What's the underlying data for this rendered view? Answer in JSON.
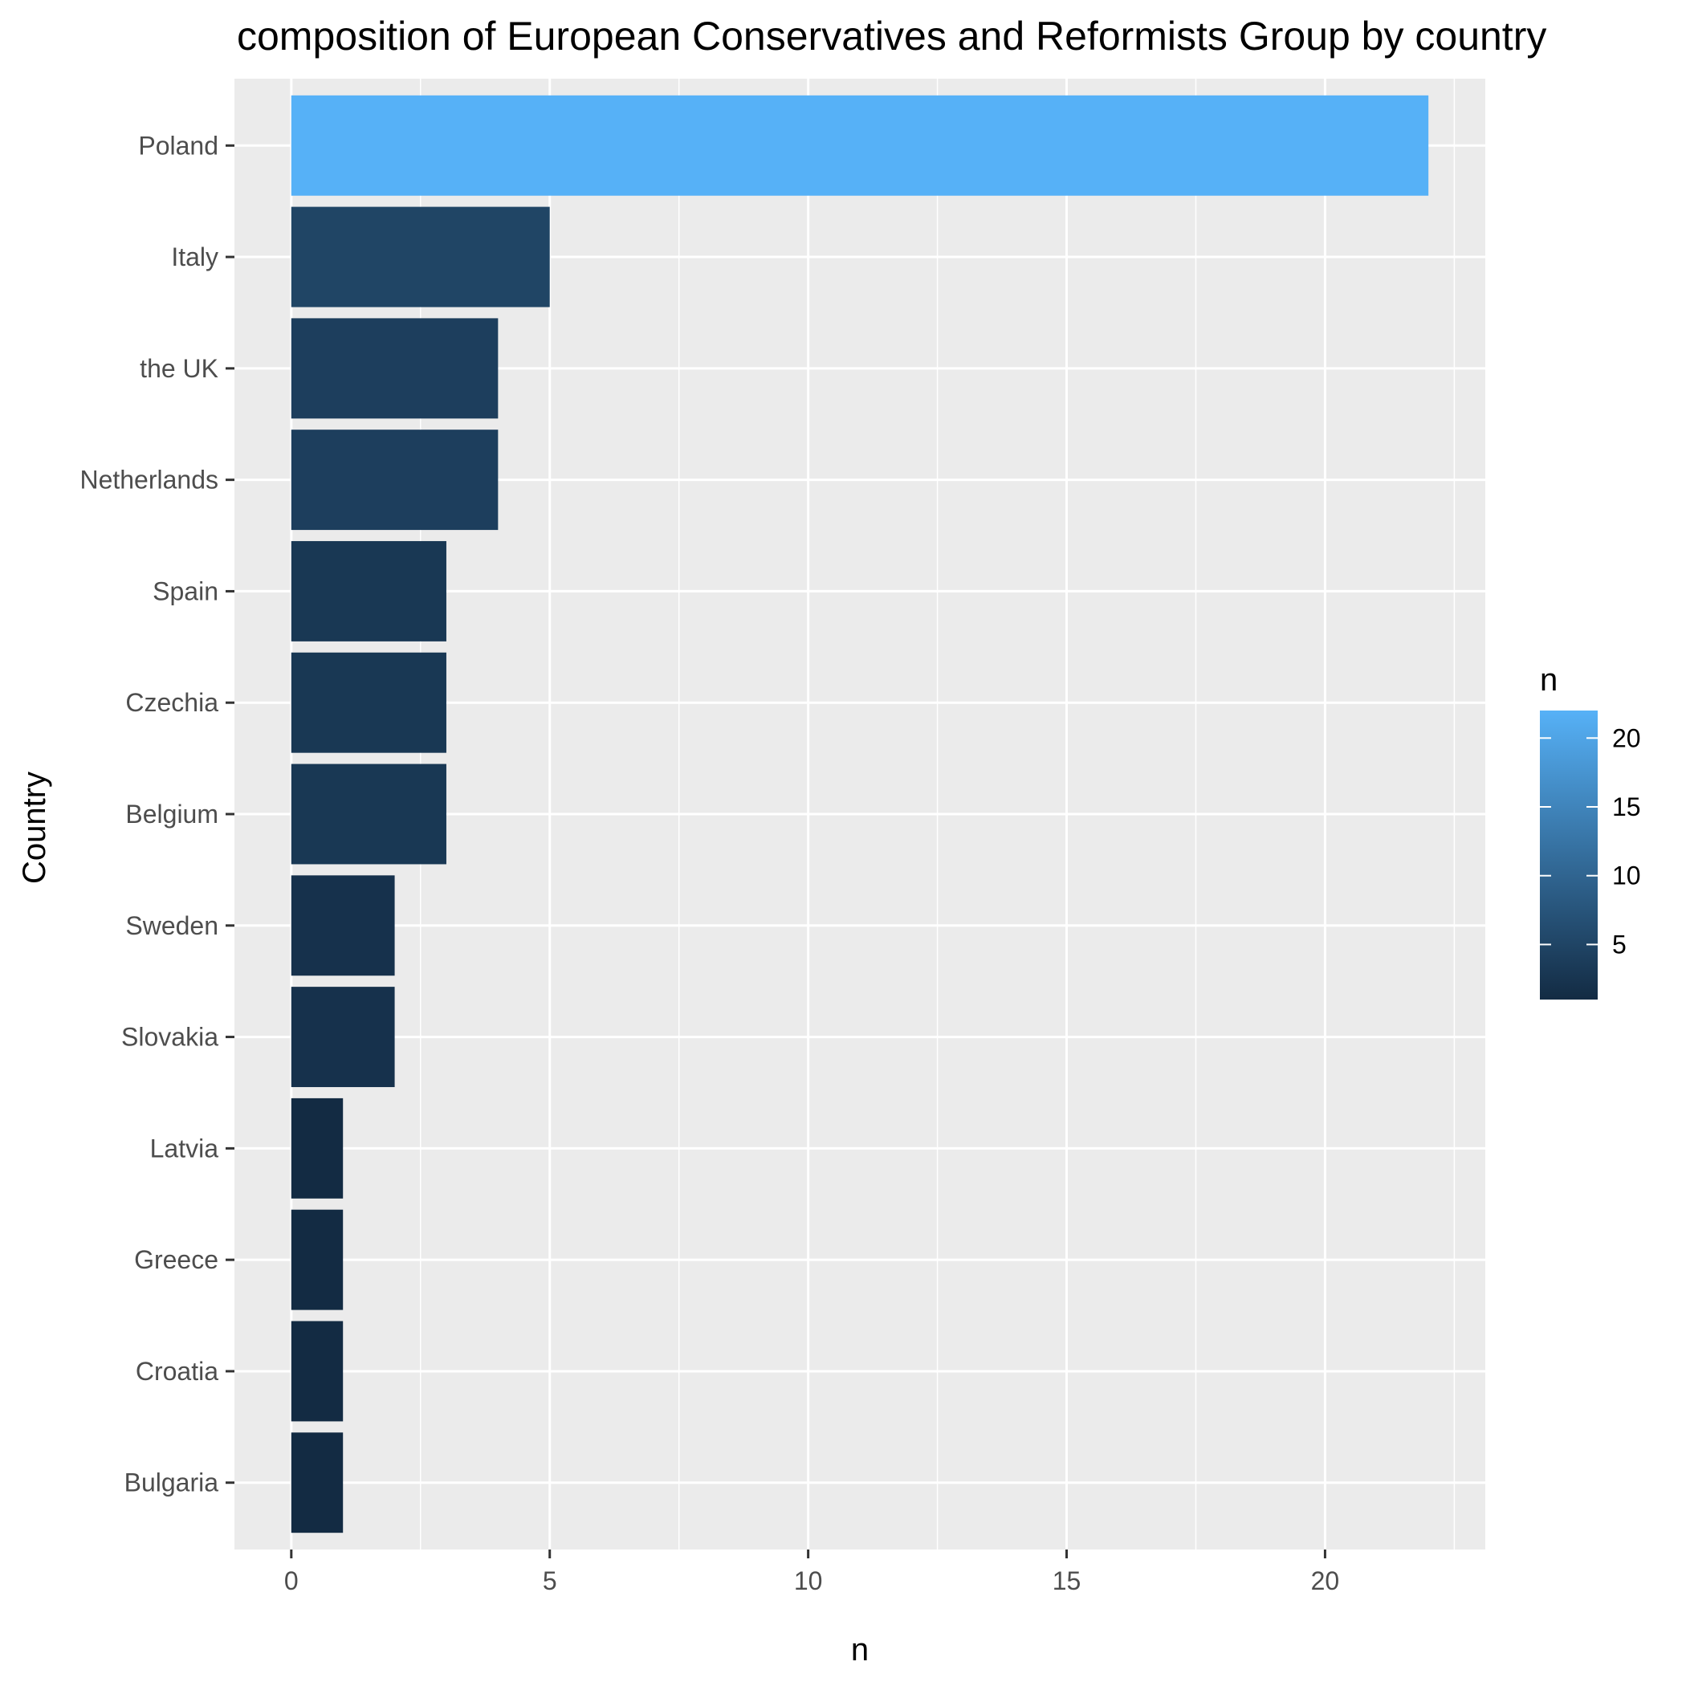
{
  "chart_data": {
    "type": "bar",
    "orientation": "horizontal",
    "title": "composition of European Conservatives and Reformists Group by country",
    "xlabel": "n",
    "ylabel": "Country",
    "categories": [
      "Poland",
      "Italy",
      "the UK",
      "Netherlands",
      "Spain",
      "Czechia",
      "Belgium",
      "Sweden",
      "Slovakia",
      "Latvia",
      "Greece",
      "Croatia",
      "Bulgaria"
    ],
    "values": [
      22,
      5,
      4,
      4,
      3,
      3,
      3,
      2,
      2,
      1,
      1,
      1,
      1
    ],
    "xlim": [
      -1.1,
      23.1
    ],
    "xticks": [
      0,
      5,
      10,
      15,
      20
    ],
    "grid": true,
    "legend": {
      "title": "n",
      "position": "right",
      "type": "colorbar",
      "range": [
        1,
        22
      ],
      "ticks": [
        5,
        10,
        15,
        20
      ],
      "low_color": "#132B43",
      "high_color": "#56B1F7"
    },
    "panel_background": "#EBEBEB",
    "grid_color": "#FFFFFF"
  }
}
